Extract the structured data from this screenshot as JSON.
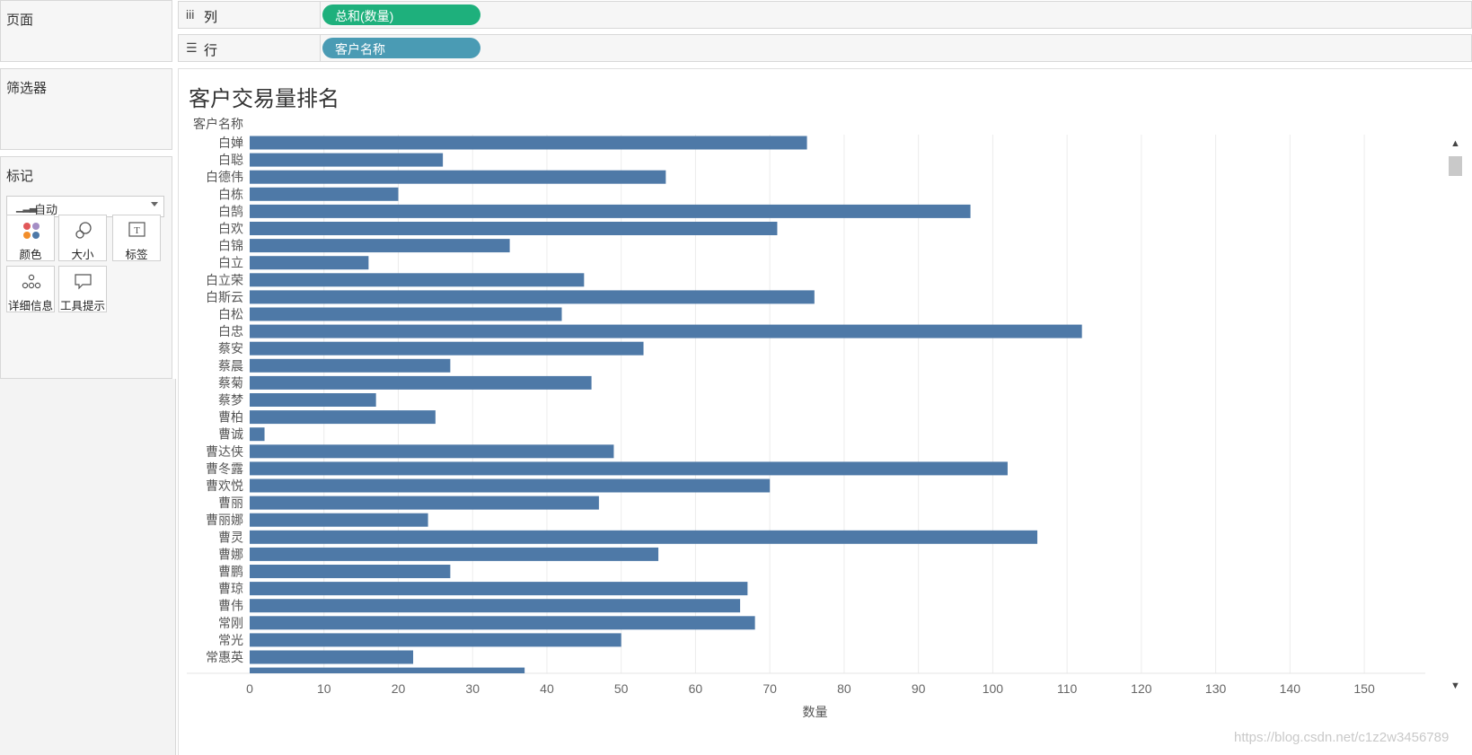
{
  "cards": {
    "pages": "页面",
    "filters": "筛选器",
    "marks": "标记"
  },
  "marks": {
    "type_icon": "bar-chart-icon",
    "type_value": "自动",
    "buttons": {
      "color": "颜色",
      "size": "大小",
      "label": "标签",
      "detail": "详细信息",
      "tooltip": "工具提示"
    }
  },
  "shelves": {
    "columns": {
      "icon": "iii",
      "label": "列",
      "pill": "总和(数量)",
      "pill_color": "#1eb07c"
    },
    "rows": {
      "icon": "☰",
      "label": "行",
      "pill": "客户名称",
      "pill_color": "#4a9bb4"
    }
  },
  "chart_data": {
    "type": "bar",
    "orientation": "horizontal",
    "title": "客户交易量排名",
    "category_header": "客户名称",
    "xlabel": "数量",
    "xlim": [
      0,
      157
    ],
    "ticks": [
      0,
      10,
      20,
      30,
      40,
      50,
      60,
      70,
      80,
      90,
      100,
      110,
      120,
      130,
      140,
      150
    ],
    "bar_color": "#4e79a7",
    "grid": "vertical",
    "categories": [
      "白婵",
      "白聪",
      "白德伟",
      "白栋",
      "白鹄",
      "白欢",
      "白锦",
      "白立",
      "白立荣",
      "白斯云",
      "白松",
      "白忠",
      "蔡安",
      "蔡晨",
      "蔡菊",
      "蔡梦",
      "曹柏",
      "曹诚",
      "曹达侠",
      "曹冬露",
      "曹欢悦",
      "曹丽",
      "曹丽娜",
      "曹灵",
      "曹娜",
      "曹鹏",
      "曹琼",
      "曹伟",
      "常刚",
      "常光",
      "常惠英"
    ],
    "values": [
      75,
      26,
      56,
      20,
      97,
      71,
      35,
      16,
      45,
      76,
      42,
      112,
      53,
      27,
      46,
      17,
      25,
      2,
      49,
      102,
      70,
      47,
      24,
      106,
      55,
      27,
      67,
      66,
      68,
      50,
      22
    ],
    "partial_next_value": 37
  },
  "watermark": "https://blog.csdn.net/c1z2w3456789"
}
